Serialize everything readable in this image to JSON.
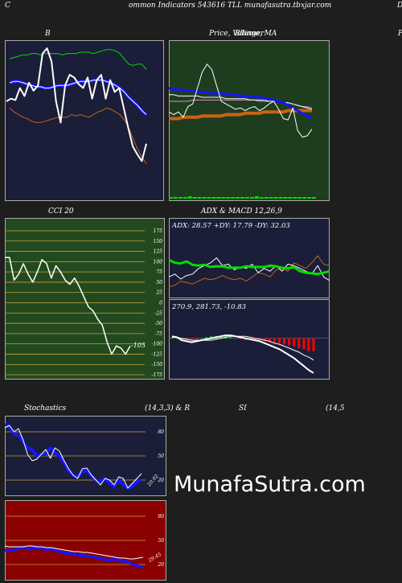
{
  "header": {
    "left_letter": "C",
    "title": "ommon Indicators 543616  TLL  munafasutra.tbxjar.com",
    "right_letter": "D"
  },
  "labels": {
    "bollinger": "B",
    "price_ma": "Price,  Volume,  MA",
    "overlap": "Bllinger",
    "right_cut": "P",
    "cci": "CCI 20",
    "adx_macd": "ADX  & MACD 12,26,9",
    "stochastics": "Stochastics",
    "stoch_params": "(14,3,3) & R",
    "si": "SI",
    "si_params": "(14,5"
  },
  "watermark": "MunafaSutra.com",
  "colors": {
    "bb_bg": "#1a1e38",
    "price_bg": "#1e3d1e",
    "cci_bg": "#234a1e",
    "adx_bg": "#1a1e38",
    "macd_bg": "#1a1e38",
    "stoch_bg": "#1a1e38",
    "rsi_bg": "#8b0000",
    "white": "#ffffff",
    "blue": "#1515ff",
    "green": "#00dd00",
    "orange": "#c86414",
    "red": "#ff0000"
  },
  "chart_data": [
    {
      "type": "line",
      "name": "bollinger",
      "title": "B",
      "ylim": [
        0,
        100
      ],
      "series": [
        {
          "key": "price",
          "values": [
            60,
            62,
            61,
            70,
            64,
            74,
            68,
            72,
            96,
            100,
            90,
            60,
            44,
            72,
            80,
            78,
            73,
            70,
            78,
            62,
            76,
            80,
            62,
            76,
            67,
            70,
            55,
            40,
            26,
            20,
            15,
            28
          ]
        },
        {
          "key": "upper",
          "values": [
            92,
            93,
            94,
            95,
            95,
            96,
            96,
            95,
            96,
            96,
            96,
            96,
            95,
            96,
            96,
            96,
            97,
            97,
            97,
            96,
            97,
            98,
            99,
            99,
            98,
            96,
            92,
            88,
            87,
            88,
            88,
            84
          ]
        },
        {
          "key": "middle",
          "values": [
            74,
            75,
            75,
            74,
            73,
            72,
            71,
            71,
            70,
            70,
            71,
            72,
            72,
            72,
            73,
            74,
            75,
            75,
            75,
            76,
            76,
            76,
            75,
            74,
            72,
            70,
            67,
            63,
            60,
            57,
            53,
            50
          ]
        },
        {
          "key": "lower",
          "values": [
            55,
            52,
            50,
            48,
            47,
            45,
            44,
            44,
            45,
            46,
            47,
            48,
            48,
            48,
            50,
            49,
            50,
            49,
            48,
            50,
            52,
            53,
            55,
            54,
            52,
            50,
            46,
            40,
            32,
            24,
            18,
            13
          ]
        }
      ]
    },
    {
      "type": "line",
      "name": "price_volume_ma",
      "title": "Price,  Volume,  MA",
      "ylim": [
        0,
        100
      ],
      "series": [
        {
          "key": "price",
          "values": [
            52,
            50,
            52,
            48,
            56,
            58,
            70,
            82,
            88,
            84,
            72,
            60,
            58,
            56,
            54,
            55,
            53,
            55,
            56,
            53,
            55,
            58,
            60,
            54,
            47,
            46,
            55,
            38,
            33,
            34,
            39
          ]
        },
        {
          "key": "ma_short",
          "values": [
            70,
            69,
            69,
            68,
            68,
            68,
            67,
            67,
            67,
            66,
            66,
            66,
            66,
            65,
            65,
            64,
            64,
            64,
            63,
            63,
            62,
            62,
            61,
            60,
            59,
            57,
            55,
            53,
            51,
            49,
            47
          ]
        },
        {
          "key": "ma_long",
          "values": [
            65,
            65,
            64,
            64,
            64,
            64,
            64,
            63,
            63,
            63,
            63,
            63,
            62,
            62,
            62,
            62,
            62,
            61,
            61,
            61,
            61,
            60,
            60,
            60,
            59,
            59,
            58,
            57,
            56,
            55,
            54
          ]
        },
        {
          "key": "ma_mid",
          "values": [
            60,
            60,
            60,
            60,
            60,
            61,
            61,
            61,
            61,
            61,
            61,
            61,
            61,
            61,
            61,
            61,
            61,
            61,
            61,
            60,
            60,
            60,
            60,
            60,
            59,
            59,
            58,
            57,
            56,
            56,
            55
          ]
        },
        {
          "key": "orange_band",
          "values": [
            47,
            47,
            47,
            48,
            48,
            48,
            48,
            49,
            49,
            49,
            49,
            49,
            50,
            50,
            50,
            50,
            51,
            51,
            51,
            51,
            52,
            52,
            52,
            52,
            52,
            53,
            53,
            53,
            53,
            53,
            53
          ]
        }
      ]
    },
    {
      "type": "line",
      "name": "cci",
      "title": "CCI 20",
      "ylim": [
        -175,
        175
      ],
      "y_ticks": [
        175,
        150,
        125,
        100,
        75,
        50,
        25,
        0,
        -25,
        -50,
        -75,
        -100,
        -125,
        -150,
        -175
      ],
      "last_value": "-105",
      "values": [
        110,
        110,
        55,
        70,
        95,
        70,
        50,
        75,
        105,
        95,
        60,
        90,
        75,
        55,
        45,
        60,
        40,
        15,
        -10,
        -20,
        -40,
        -55,
        -95,
        -125,
        -105,
        -110,
        -125,
        -105
      ]
    },
    {
      "type": "line",
      "name": "adx",
      "title": "ADX  & MACD 12,26,9",
      "subtitle": "ADX: 28.57  +DY: 17.79  -DY: 32.03",
      "ylim": [
        0,
        100
      ],
      "series": [
        {
          "key": "adx",
          "values": [
            52,
            48,
            47,
            50,
            45,
            44,
            45,
            42,
            43,
            43,
            41,
            41,
            41,
            43,
            42,
            42,
            42,
            44,
            43,
            41,
            40,
            42,
            36,
            34,
            33,
            32,
            34,
            36
          ]
        },
        {
          "key": "plus_di",
          "values": [
            28,
            32,
            25,
            30,
            32,
            40,
            44,
            48,
            55,
            44,
            46,
            38,
            42,
            40,
            46,
            34,
            40,
            36,
            44,
            36,
            46,
            44,
            40,
            36,
            32,
            44,
            28,
            23
          ]
        },
        {
          "key": "minus_di",
          "values": [
            14,
            16,
            22,
            20,
            18,
            22,
            26,
            24,
            26,
            30,
            26,
            24,
            26,
            22,
            28,
            34,
            32,
            28,
            38,
            40,
            36,
            48,
            44,
            40,
            48,
            58,
            46,
            44
          ]
        }
      ]
    },
    {
      "type": "bar",
      "name": "macd",
      "subtitle": "270.9,  281.73,  -10.83",
      "ylim": [
        -40,
        20
      ],
      "series": [
        {
          "key": "macd",
          "values": [
            2,
            1,
            -2,
            -3,
            -4,
            -3,
            -2,
            -1,
            0,
            1,
            2,
            3,
            3,
            2,
            1,
            0,
            -1,
            -2,
            -3,
            -5,
            -7,
            -9,
            -11,
            -14,
            -17,
            -20,
            -24,
            -28,
            -32,
            -35
          ]
        },
        {
          "key": "signal",
          "values": [
            1,
            1,
            0,
            -1,
            -2,
            -2,
            -2,
            -2,
            -2,
            -1,
            0,
            1,
            2,
            2,
            2,
            2,
            1,
            0,
            -1,
            -2,
            -3,
            -5,
            -6,
            -8,
            -10,
            -12,
            -14,
            -17,
            -19,
            -22
          ]
        },
        {
          "key": "histogram",
          "values": [
            1,
            0,
            -2,
            -2,
            -2,
            -1,
            0,
            1,
            2,
            2,
            2,
            2,
            1,
            0,
            -1,
            -2,
            -2,
            -2,
            -2,
            -3,
            -4,
            -4,
            -5,
            -6,
            -7,
            -8,
            -10,
            -11,
            -13,
            -13
          ]
        }
      ]
    },
    {
      "type": "line",
      "name": "stochastics",
      "title": "Stochastics",
      "subtitle": "(14,3,3) & R",
      "ylim": [
        0,
        100
      ],
      "y_ticks": [
        80,
        50,
        20
      ],
      "last_value": "20.02",
      "series": [
        {
          "key": "k",
          "values": [
            85,
            88,
            80,
            84,
            70,
            52,
            44,
            46,
            52,
            58,
            47,
            60,
            56,
            44,
            34,
            26,
            22,
            34,
            35,
            26,
            20,
            14,
            22,
            20,
            14,
            24,
            22,
            10,
            16,
            22,
            28
          ]
        },
        {
          "key": "d",
          "values": [
            90,
            86,
            78,
            76,
            68,
            60,
            58,
            50,
            52,
            52,
            60,
            54,
            50,
            42,
            32,
            26,
            24,
            30,
            32,
            26,
            20,
            18,
            22,
            16,
            12,
            20,
            14,
            10,
            12,
            18,
            20
          ]
        }
      ]
    },
    {
      "type": "line",
      "name": "rsi",
      "title": "SI",
      "subtitle": "(14,5",
      "ylim": [
        0,
        100
      ],
      "y_ticks": [
        80,
        50,
        20
      ],
      "last_value": "29.45",
      "series": [
        {
          "key": "rsi",
          "values": [
            38,
            37,
            38,
            40,
            42,
            39,
            41,
            40,
            42,
            38,
            40,
            38,
            36,
            34,
            34,
            33,
            32,
            31,
            30,
            30,
            28,
            27,
            26,
            25,
            27,
            25,
            24,
            22,
            20,
            18,
            17
          ]
        },
        {
          "key": "rsi_ma",
          "values": [
            43,
            42,
            42,
            42,
            42,
            43,
            43,
            42,
            42,
            41,
            41,
            40,
            39,
            38,
            37,
            36,
            36,
            35,
            35,
            34,
            33,
            32,
            31,
            30,
            29,
            28,
            28,
            27,
            27,
            28,
            29
          ]
        }
      ]
    }
  ]
}
